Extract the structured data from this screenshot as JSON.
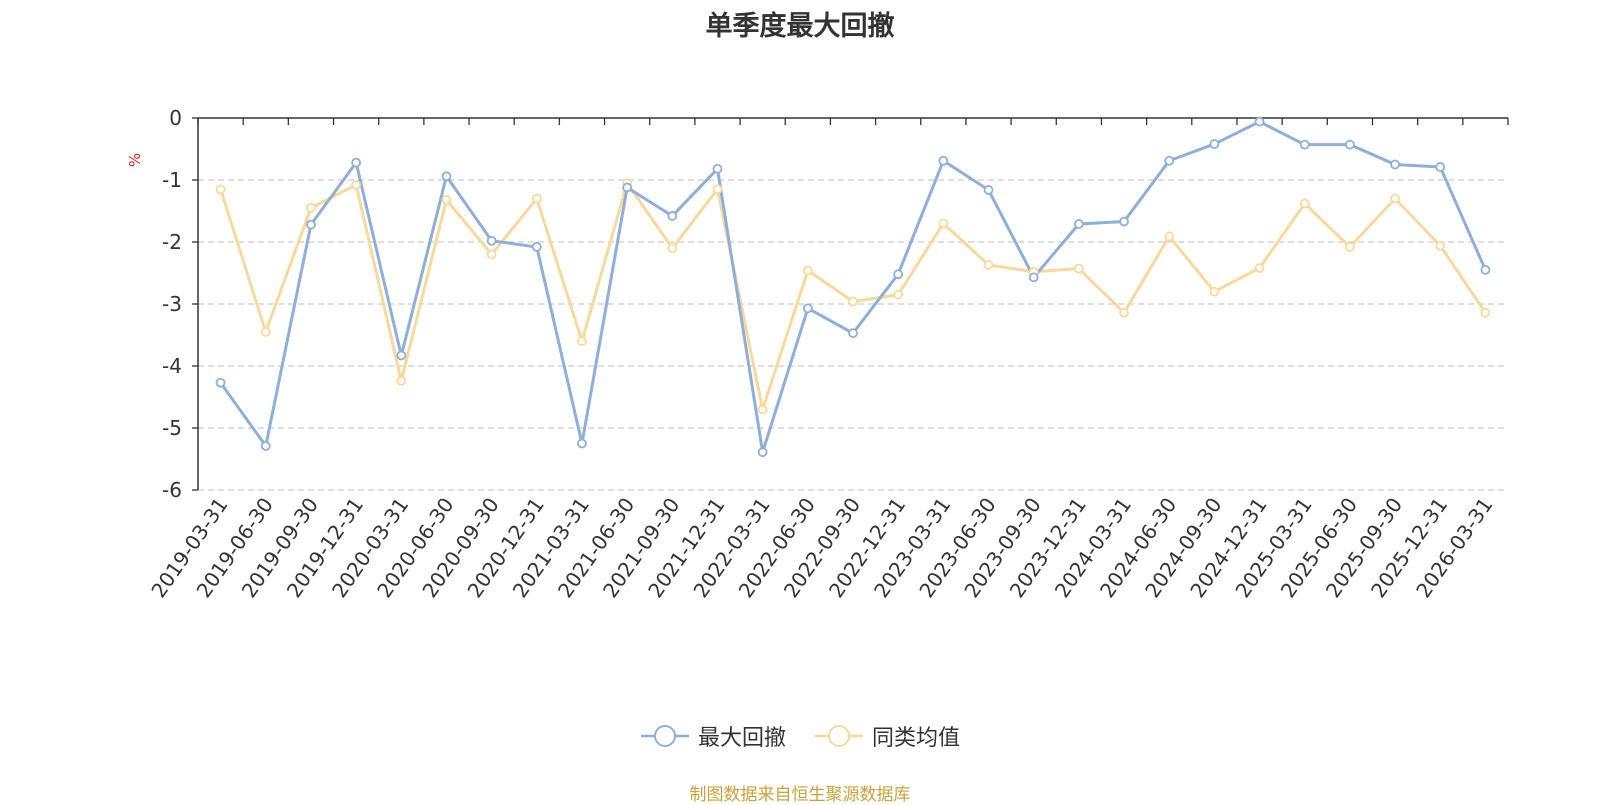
{
  "chart_data": {
    "type": "line",
    "title": "单季度最大回撤",
    "ylabel": "%",
    "ylim": [
      -6,
      0
    ],
    "yticks": [
      0,
      -1,
      -2,
      -3,
      -4,
      -5,
      -6
    ],
    "grid": true,
    "legend_position": "bottom-center",
    "x": [
      "2019-03-31",
      "2019-06-30",
      "2019-09-30",
      "2019-12-31",
      "2020-03-31",
      "2020-06-30",
      "2020-09-30",
      "2020-12-31",
      "2021-03-31",
      "2021-06-30",
      "2021-09-30",
      "2021-12-31",
      "2022-03-31",
      "2022-06-30",
      "2022-09-30",
      "2022-12-31",
      "2023-03-31",
      "2023-06-30",
      "2023-09-30",
      "2023-12-31",
      "2024-03-31",
      "2024-06-30",
      "2024-09-30",
      "2024-12-31",
      "2025-03-31",
      "2025-06-30",
      "2025-09-30",
      "2025-12-31",
      "2026-03-31"
    ],
    "series": [
      {
        "name": "最大回撤",
        "color": "#8eaedb",
        "values": [
          -4.27,
          -5.29,
          -1.72,
          -0.72,
          -3.83,
          -0.94,
          -1.98,
          -2.08,
          -5.25,
          -1.12,
          -1.58,
          -0.82,
          -5.39,
          -3.07,
          -3.47,
          -2.52,
          -0.69,
          -1.16,
          -2.57,
          -1.71,
          -1.67,
          -0.69,
          -0.42,
          -0.06,
          -0.43,
          -0.43,
          -0.75,
          -0.79,
          -2.45
        ]
      },
      {
        "name": "同类均值",
        "color": "#f9d99b",
        "values": [
          -1.15,
          -3.45,
          -1.45,
          -1.08,
          -4.24,
          -1.32,
          -2.2,
          -1.3,
          -3.6,
          -1.05,
          -2.1,
          -1.15,
          -4.7,
          -2.46,
          -2.96,
          -2.85,
          -1.7,
          -2.37,
          -2.48,
          -2.43,
          -3.14,
          -1.91,
          -2.8,
          -2.42,
          -1.38,
          -2.08,
          -1.3,
          -2.06,
          -3.14
        ]
      }
    ]
  },
  "source_note": "制图数据来自恒生聚源数据库"
}
